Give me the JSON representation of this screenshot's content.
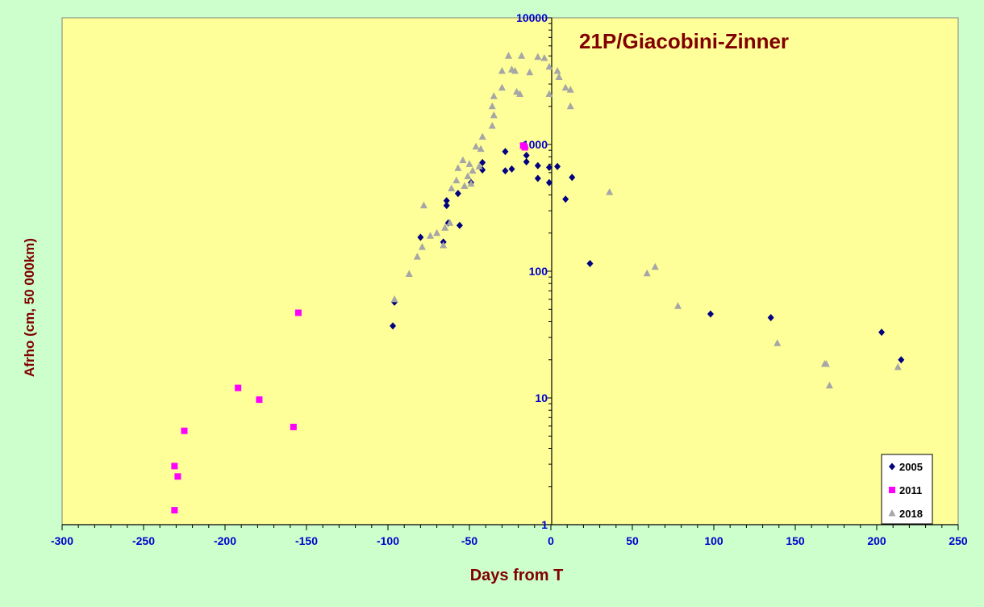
{
  "chart_data": {
    "type": "scatter",
    "title": "21P/Giacobini-Zinner",
    "xlabel": "Days from  T",
    "ylabel": "Afrho (cm, 50 000km)",
    "xlim": [
      -300,
      250
    ],
    "ylim": [
      1,
      10000
    ],
    "yscale": "log",
    "grid": false,
    "legend": "bottom-right",
    "background_color": "#ccffcc",
    "plot_color": "#ffff99",
    "x_ticks": [
      "-300",
      "-250",
      "-200",
      "-150",
      "-100",
      "-50",
      "0",
      "50",
      "100",
      "150",
      "200",
      "250"
    ],
    "y_ticks": [
      "1",
      "10",
      "100",
      "1000",
      "10000"
    ],
    "series": [
      {
        "name": "2005",
        "marker": "diamond",
        "color": "#000080",
        "points": [
          [
            -97,
            37
          ],
          [
            -96,
            57
          ],
          [
            -80,
            185
          ],
          [
            -66,
            170
          ],
          [
            -64,
            330
          ],
          [
            -64,
            360
          ],
          [
            -63,
            240
          ],
          [
            -57,
            410
          ],
          [
            -56,
            230
          ],
          [
            -49,
            500
          ],
          [
            -42,
            630
          ],
          [
            -42,
            720
          ],
          [
            -28,
            620
          ],
          [
            -28,
            880
          ],
          [
            -24,
            640
          ],
          [
            -15,
            730
          ],
          [
            -15,
            820
          ],
          [
            -8,
            540
          ],
          [
            -8,
            680
          ],
          [
            -1,
            500
          ],
          [
            -1,
            660
          ],
          [
            4,
            670
          ],
          [
            9,
            370
          ],
          [
            13,
            550
          ],
          [
            24,
            115
          ],
          [
            98,
            46
          ],
          [
            135,
            43
          ],
          [
            203,
            33
          ],
          [
            215,
            20
          ]
        ]
      },
      {
        "name": "2011",
        "marker": "square",
        "color": "#ff00ff",
        "points": [
          [
            -231,
            1.3
          ],
          [
            -231,
            2.9
          ],
          [
            -229,
            2.4
          ],
          [
            -225,
            5.5
          ],
          [
            -192,
            12
          ],
          [
            -179,
            9.7
          ],
          [
            -158,
            5.9
          ],
          [
            -155,
            47
          ],
          [
            -17,
            980
          ],
          [
            -16,
            950
          ]
        ]
      },
      {
        "name": "2018",
        "marker": "triangle",
        "color": "#a6a6a6",
        "points": [
          [
            -96,
            60
          ],
          [
            -87,
            95
          ],
          [
            -82,
            130
          ],
          [
            -79,
            155
          ],
          [
            -78,
            330
          ],
          [
            -74,
            190
          ],
          [
            -70,
            200
          ],
          [
            -66,
            160
          ],
          [
            -65,
            220
          ],
          [
            -62,
            240
          ],
          [
            -61,
            450
          ],
          [
            -58,
            520
          ],
          [
            -57,
            650
          ],
          [
            -54,
            750
          ],
          [
            -53,
            470
          ],
          [
            -51,
            560
          ],
          [
            -50,
            700
          ],
          [
            -49,
            490
          ],
          [
            -48,
            620
          ],
          [
            -46,
            960
          ],
          [
            -44,
            670
          ],
          [
            -43,
            920
          ],
          [
            -42,
            1150
          ],
          [
            -36,
            1400
          ],
          [
            -36,
            2000
          ],
          [
            -35,
            1700
          ],
          [
            -35,
            2400
          ],
          [
            -30,
            2800
          ],
          [
            -30,
            3800
          ],
          [
            -26,
            5000
          ],
          [
            -24,
            3900
          ],
          [
            -22,
            3800
          ],
          [
            -21,
            2600
          ],
          [
            -19,
            2500
          ],
          [
            -18,
            5000
          ],
          [
            -13,
            3700
          ],
          [
            -8,
            4900
          ],
          [
            -4,
            4800
          ],
          [
            -1,
            4100
          ],
          [
            -1,
            2500
          ],
          [
            4,
            3800
          ],
          [
            5,
            3400
          ],
          [
            9,
            2800
          ],
          [
            12,
            2700
          ],
          [
            12,
            2000
          ],
          [
            36,
            420
          ],
          [
            59,
            96
          ],
          [
            64,
            108
          ],
          [
            78,
            53
          ],
          [
            139,
            27
          ],
          [
            168,
            18.5
          ],
          [
            169,
            18.5
          ],
          [
            171,
            12.5
          ],
          [
            213,
            17.5
          ]
        ]
      }
    ]
  }
}
